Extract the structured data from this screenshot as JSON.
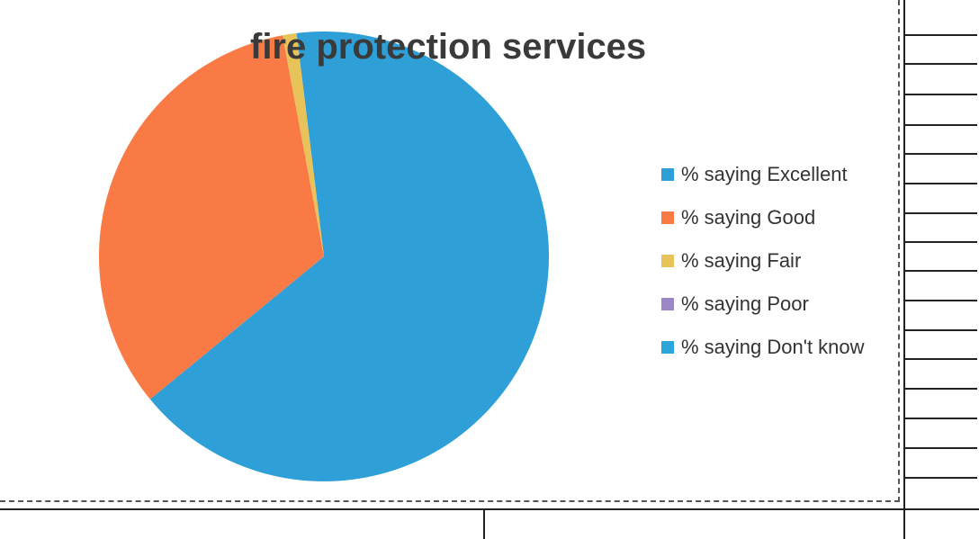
{
  "chart_data": {
    "type": "pie",
    "title": "fire protection services",
    "legend_position": "right",
    "categories": [
      "% saying Excellent",
      "% saying Good",
      "% saying Fair",
      "% saying Poor",
      "% saying Don't know"
    ],
    "values": [
      66,
      33,
      1,
      0,
      0
    ],
    "colors": [
      "#2f9fd8",
      "#f97a45",
      "#e8c35a",
      "#9b86c8",
      "#2aa6db"
    ]
  }
}
